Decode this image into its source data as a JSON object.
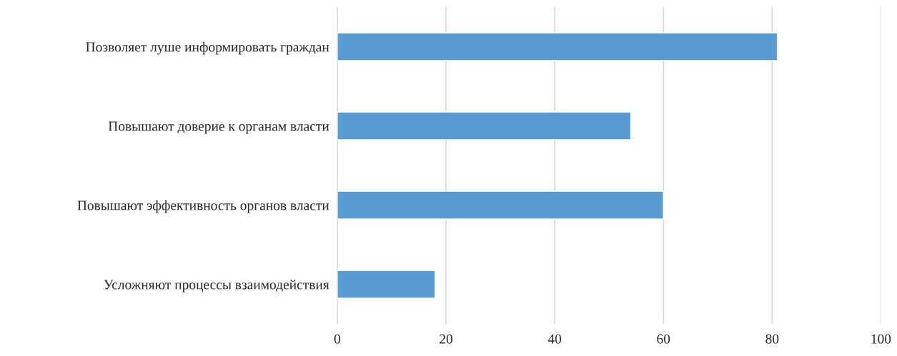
{
  "chart_data": {
    "type": "bar",
    "orientation": "horizontal",
    "categories": [
      "Позволяет луше информировать граждан",
      "Повышают доверие к органам власти",
      "Повышают эффективность органов власти",
      "Усложняют процессы взаимодействия"
    ],
    "values": [
      81,
      54,
      60,
      18
    ],
    "color": "#5b9bd5",
    "xlim": [
      0,
      100
    ],
    "xticks": [
      0,
      20,
      40,
      60,
      80,
      100
    ],
    "grid": "x"
  }
}
